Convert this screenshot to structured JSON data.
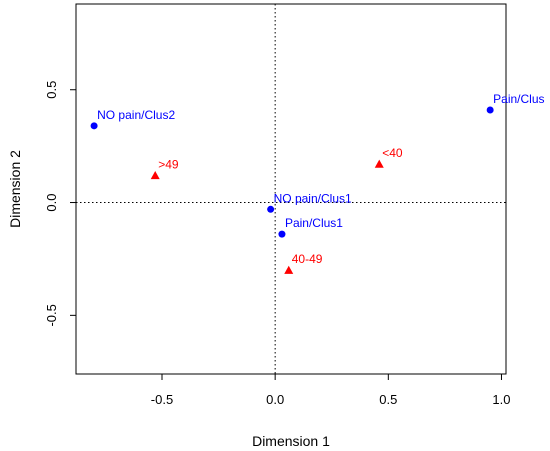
{
  "chart_data": {
    "type": "scatter",
    "title": "",
    "xlabel": "Dimension 1",
    "ylabel": "Dimension 2",
    "xlim": [
      -0.88,
      1.02
    ],
    "ylim": [
      -0.76,
      0.88
    ],
    "xticks": [
      -0.5,
      0.0,
      0.5,
      1.0
    ],
    "xtick_labels": [
      "-0.5",
      "0.0",
      "0.5",
      "1.0"
    ],
    "yticks": [
      -0.5,
      0.0,
      0.5
    ],
    "ytick_labels": [
      "-0.5",
      "0.0",
      "0.5"
    ],
    "reference_lines": {
      "x": 0,
      "y": 0,
      "style": "dotted"
    },
    "grid": false,
    "series": [
      {
        "marker": "circle",
        "color": "#0000ff",
        "points": [
          {
            "label": "NO pain/Clus2",
            "x": -0.8,
            "y": 0.34
          },
          {
            "label": "Pain/Clus",
            "x": 0.95,
            "y": 0.41
          },
          {
            "label": "NO pain/Clus1",
            "x": -0.02,
            "y": -0.03
          },
          {
            "label": "Pain/Clus1",
            "x": 0.03,
            "y": -0.14
          }
        ]
      },
      {
        "marker": "triangle",
        "color": "#ff0000",
        "points": [
          {
            "label": ">49",
            "x": -0.53,
            "y": 0.12
          },
          {
            "label": "<40",
            "x": 0.46,
            "y": 0.17
          },
          {
            "label": "40-49",
            "x": 0.06,
            "y": -0.3
          }
        ]
      }
    ]
  }
}
